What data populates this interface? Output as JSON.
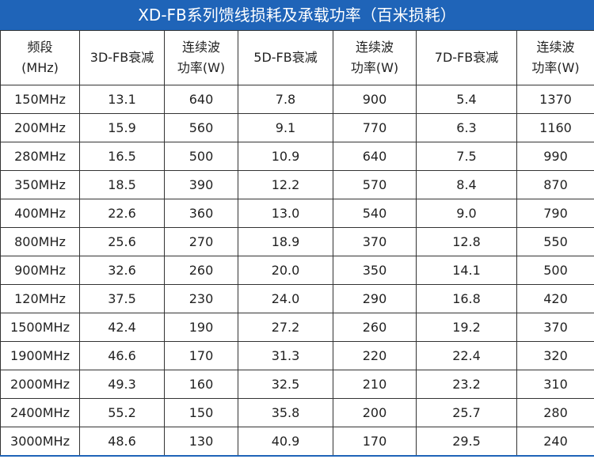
{
  "header": {
    "title": "XD-FB系列馈线损耗及承载功率（百米损耗）"
  },
  "table": {
    "columns": [
      [
        "频段",
        "(MHz)"
      ],
      [
        "3D-FB衰减"
      ],
      [
        "连续波",
        "功率(W)"
      ],
      [
        "5D-FB衰减"
      ],
      [
        "连续波",
        "功率(W)"
      ],
      [
        "7D-FB衰减"
      ],
      [
        "连续波",
        "功率(W)"
      ]
    ],
    "rows": [
      [
        "150MHz",
        "13.1",
        "640",
        "7.8",
        "900",
        "5.4",
        "1370"
      ],
      [
        "200MHz",
        "15.9",
        "560",
        "9.1",
        "770",
        "6.3",
        "1160"
      ],
      [
        "280MHz",
        "16.5",
        "500",
        "10.9",
        "640",
        "7.5",
        "990"
      ],
      [
        "350MHz",
        "18.5",
        "390",
        "12.2",
        "570",
        "8.4",
        "870"
      ],
      [
        "400MHz",
        "22.6",
        "360",
        "13.0",
        "540",
        "9.0",
        "790"
      ],
      [
        "800MHz",
        "25.6",
        "270",
        "18.9",
        "370",
        "12.8",
        "550"
      ],
      [
        "900MHz",
        "32.6",
        "260",
        "20.0",
        "350",
        "14.1",
        "500"
      ],
      [
        "120MHz",
        "37.5",
        "230",
        "24.0",
        "290",
        "16.8",
        "420"
      ],
      [
        "1500MHz",
        "42.4",
        "190",
        "27.2",
        "260",
        "19.2",
        "370"
      ],
      [
        "1900MHz",
        "46.6",
        "170",
        "31.3",
        "220",
        "22.4",
        "320"
      ],
      [
        "2000MHz",
        "49.3",
        "160",
        "32.5",
        "210",
        "23.2",
        "310"
      ],
      [
        "2400MHz",
        "55.2",
        "150",
        "35.8",
        "200",
        "25.7",
        "280"
      ],
      [
        "3000MHz",
        "48.6",
        "130",
        "40.9",
        "170",
        "29.5",
        "240"
      ]
    ]
  }
}
